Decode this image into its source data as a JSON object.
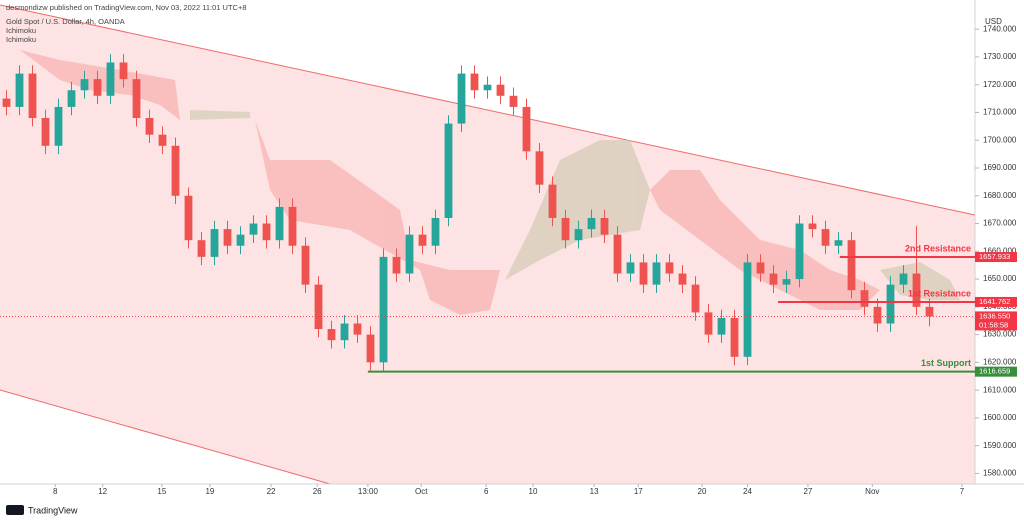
{
  "header": {
    "publisher": "desmondizw published on TradingView.com, Nov 03, 2022 11:01 UTC+8",
    "symbol": "Gold Spot / U.S. Dollar, 4h, OANDA",
    "indicators": [
      "Ichimoku",
      "Ichimoku"
    ],
    "currency": "USD"
  },
  "footer": {
    "brand": "TradingView"
  },
  "chart_data": {
    "type": "candlestick",
    "up_color": "#26a69a",
    "down_color": "#ef5350",
    "x": [
      1,
      3,
      5,
      7,
      9,
      11,
      13,
      15,
      17,
      19,
      21,
      23,
      25,
      27,
      29,
      31,
      33,
      35,
      37,
      39,
      41,
      43,
      45,
      47,
      49,
      51,
      53,
      55,
      57,
      59,
      61,
      63,
      65,
      67,
      69,
      71,
      73,
      75,
      77,
      79,
      81,
      83,
      85,
      87,
      89,
      91,
      93,
      95,
      97,
      99,
      101,
      103,
      105,
      107,
      109,
      111,
      113,
      115,
      117,
      119,
      121,
      123,
      125,
      127,
      129,
      131,
      133,
      135,
      137,
      139,
      141,
      143
    ],
    "open": [
      1715,
      1712,
      1724,
      1708,
      1698,
      1712,
      1718,
      1722,
      1716,
      1728,
      1722,
      1708,
      1702,
      1698,
      1680,
      1664,
      1658,
      1668,
      1662,
      1666,
      1670,
      1664,
      1676,
      1662,
      1648,
      1632,
      1628,
      1634,
      1630,
      1620,
      1658,
      1652,
      1666,
      1662,
      1672,
      1706,
      1724,
      1718,
      1720,
      1716,
      1712,
      1696,
      1684,
      1672,
      1664,
      1668,
      1672,
      1666,
      1652,
      1656,
      1648,
      1656,
      1652,
      1648,
      1638,
      1630,
      1636,
      1622,
      1656,
      1652,
      1648,
      1650,
      1670,
      1668,
      1662,
      1664,
      1646,
      1640,
      1634,
      1648,
      1652,
      1640
    ],
    "high": [
      1718,
      1727,
      1727,
      1711,
      1715,
      1721,
      1725,
      1725,
      1731,
      1731,
      1725,
      1711,
      1705,
      1701,
      1683,
      1667,
      1671,
      1671,
      1669,
      1673,
      1673,
      1679,
      1679,
      1665,
      1651,
      1635,
      1637,
      1637,
      1633,
      1661,
      1661,
      1669,
      1669,
      1675,
      1709,
      1727,
      1727,
      1723,
      1723,
      1719,
      1715,
      1699,
      1687,
      1675,
      1671,
      1675,
      1675,
      1669,
      1659,
      1659,
      1659,
      1659,
      1655,
      1651,
      1641,
      1639,
      1639,
      1659,
      1659,
      1655,
      1653,
      1673,
      1673,
      1671,
      1667,
      1667,
      1649,
      1643,
      1651,
      1655,
      1669,
      1643
    ],
    "low": [
      1709,
      1709,
      1705,
      1695,
      1695,
      1709,
      1715,
      1713,
      1713,
      1719,
      1705,
      1699,
      1695,
      1677,
      1661,
      1655,
      1655,
      1659,
      1659,
      1663,
      1661,
      1661,
      1659,
      1645,
      1629,
      1625,
      1625,
      1627,
      1617,
      1617,
      1649,
      1649,
      1659,
      1659,
      1669,
      1703,
      1715,
      1715,
      1713,
      1709,
      1693,
      1681,
      1669,
      1661,
      1661,
      1665,
      1663,
      1649,
      1649,
      1645,
      1645,
      1649,
      1645,
      1635,
      1627,
      1627,
      1619,
      1619,
      1649,
      1645,
      1645,
      1647,
      1665,
      1659,
      1659,
      1643,
      1637,
      1631,
      1631,
      1645,
      1637,
      1633
    ],
    "close": [
      1712,
      1724,
      1708,
      1698,
      1712,
      1718,
      1722,
      1716,
      1728,
      1722,
      1708,
      1702,
      1698,
      1680,
      1664,
      1658,
      1668,
      1662,
      1666,
      1670,
      1664,
      1676,
      1662,
      1648,
      1632,
      1628,
      1634,
      1630,
      1620,
      1658,
      1652,
      1666,
      1662,
      1672,
      1706,
      1724,
      1718,
      1720,
      1716,
      1712,
      1696,
      1684,
      1672,
      1664,
      1668,
      1672,
      1666,
      1652,
      1656,
      1648,
      1656,
      1652,
      1648,
      1638,
      1630,
      1636,
      1622,
      1656,
      1652,
      1648,
      1650,
      1670,
      1668,
      1662,
      1664,
      1646,
      1640,
      1634,
      1648,
      1652,
      1640,
      1636.55
    ],
    "xlim": [
      0,
      150
    ],
    "xticks": [
      {
        "value": 8.5,
        "label": "8"
      },
      {
        "value": 15.8,
        "label": "12"
      },
      {
        "value": 24.9,
        "label": "15"
      },
      {
        "value": 32.3,
        "label": "19"
      },
      {
        "value": 41.7,
        "label": "22"
      },
      {
        "value": 48.8,
        "label": "26"
      },
      {
        "value": 56.6,
        "label": "13:00"
      },
      {
        "value": 64.8,
        "label": "Oct"
      },
      {
        "value": 74.8,
        "label": "6"
      },
      {
        "value": 82,
        "label": "10"
      },
      {
        "value": 91.4,
        "label": "13"
      },
      {
        "value": 98.2,
        "label": "17"
      },
      {
        "value": 108,
        "label": "20"
      },
      {
        "value": 115,
        "label": "24"
      },
      {
        "value": 124.3,
        "label": "27"
      },
      {
        "value": 134.2,
        "label": "Nov"
      },
      {
        "value": 148,
        "label": "7"
      }
    ],
    "ylim": [
      1576.2,
      1750.5
    ],
    "yticks": [
      {
        "value": 1580,
        "label": "1580.000"
      },
      {
        "value": 1590,
        "label": "1590.000"
      },
      {
        "value": 1600,
        "label": "1600.000"
      },
      {
        "value": 1610,
        "label": "1610.000"
      },
      {
        "value": 1620,
        "label": "1620.000"
      },
      {
        "value": 1630,
        "label": "1630.000"
      },
      {
        "value": 1640,
        "label": "1640.000"
      },
      {
        "value": 1650,
        "label": "1650.000"
      },
      {
        "value": 1660,
        "label": "1660.000"
      },
      {
        "value": 1670,
        "label": "1670.000"
      },
      {
        "value": 1680,
        "label": "1680.000"
      },
      {
        "value": 1690,
        "label": "1690.000"
      },
      {
        "value": 1700,
        "label": "1700.000"
      },
      {
        "value": 1710,
        "label": "1710.000"
      },
      {
        "value": 1720,
        "label": "1720.000"
      },
      {
        "value": 1730,
        "label": "1730.000"
      },
      {
        "value": 1740,
        "label": "1740.000"
      }
    ],
    "levels": [
      {
        "name": "2nd Resistance",
        "value": 1657.933,
        "from": 129.2,
        "color": "#f23645"
      },
      {
        "name": "1st Resistance",
        "value": 1641.762,
        "from": 119.7,
        "color": "#f23645"
      },
      {
        "name": "1st Support",
        "value": 1616.659,
        "from": 56.6,
        "color": "#388e3c"
      }
    ],
    "last_price": {
      "value": 1636.55,
      "label": "1636.550",
      "countdown": "01:58:58",
      "color": "#f23645"
    }
  }
}
